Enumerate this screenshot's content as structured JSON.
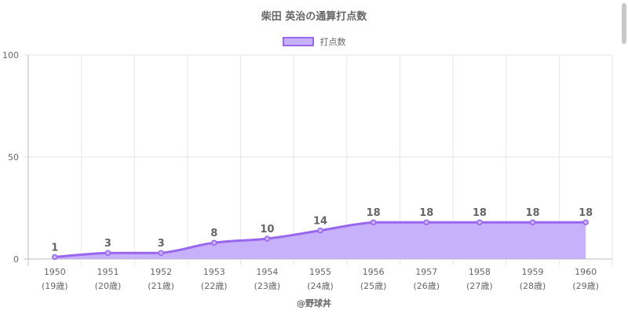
{
  "colors": {
    "line": "#9966ee",
    "fill": "#c7b1fb",
    "grid": "#e6e6e6",
    "axis": "#bdbdbd",
    "text": "#666666"
  },
  "credit": "@野球丼",
  "chart_data": {
    "type": "area",
    "title": "柴田 英治の通算打点数",
    "legend_position": "top",
    "grid": true,
    "categories": [
      "1950",
      "1951",
      "1952",
      "1953",
      "1954",
      "1955",
      "1956",
      "1957",
      "1958",
      "1959",
      "1960"
    ],
    "category_sublabels": [
      "(19歳)",
      "(20歳)",
      "(21歳)",
      "(22歳)",
      "(23歳)",
      "(24歳)",
      "(25歳)",
      "(26歳)",
      "(27歳)",
      "(28歳)",
      "(29歳)"
    ],
    "series": [
      {
        "name": "打点数",
        "values": [
          1,
          3,
          3,
          8,
          10,
          14,
          18,
          18,
          18,
          18,
          18
        ]
      }
    ],
    "ylim": [
      0,
      100
    ],
    "yticks": [
      0,
      50,
      100
    ],
    "xlabel": "",
    "ylabel": ""
  }
}
